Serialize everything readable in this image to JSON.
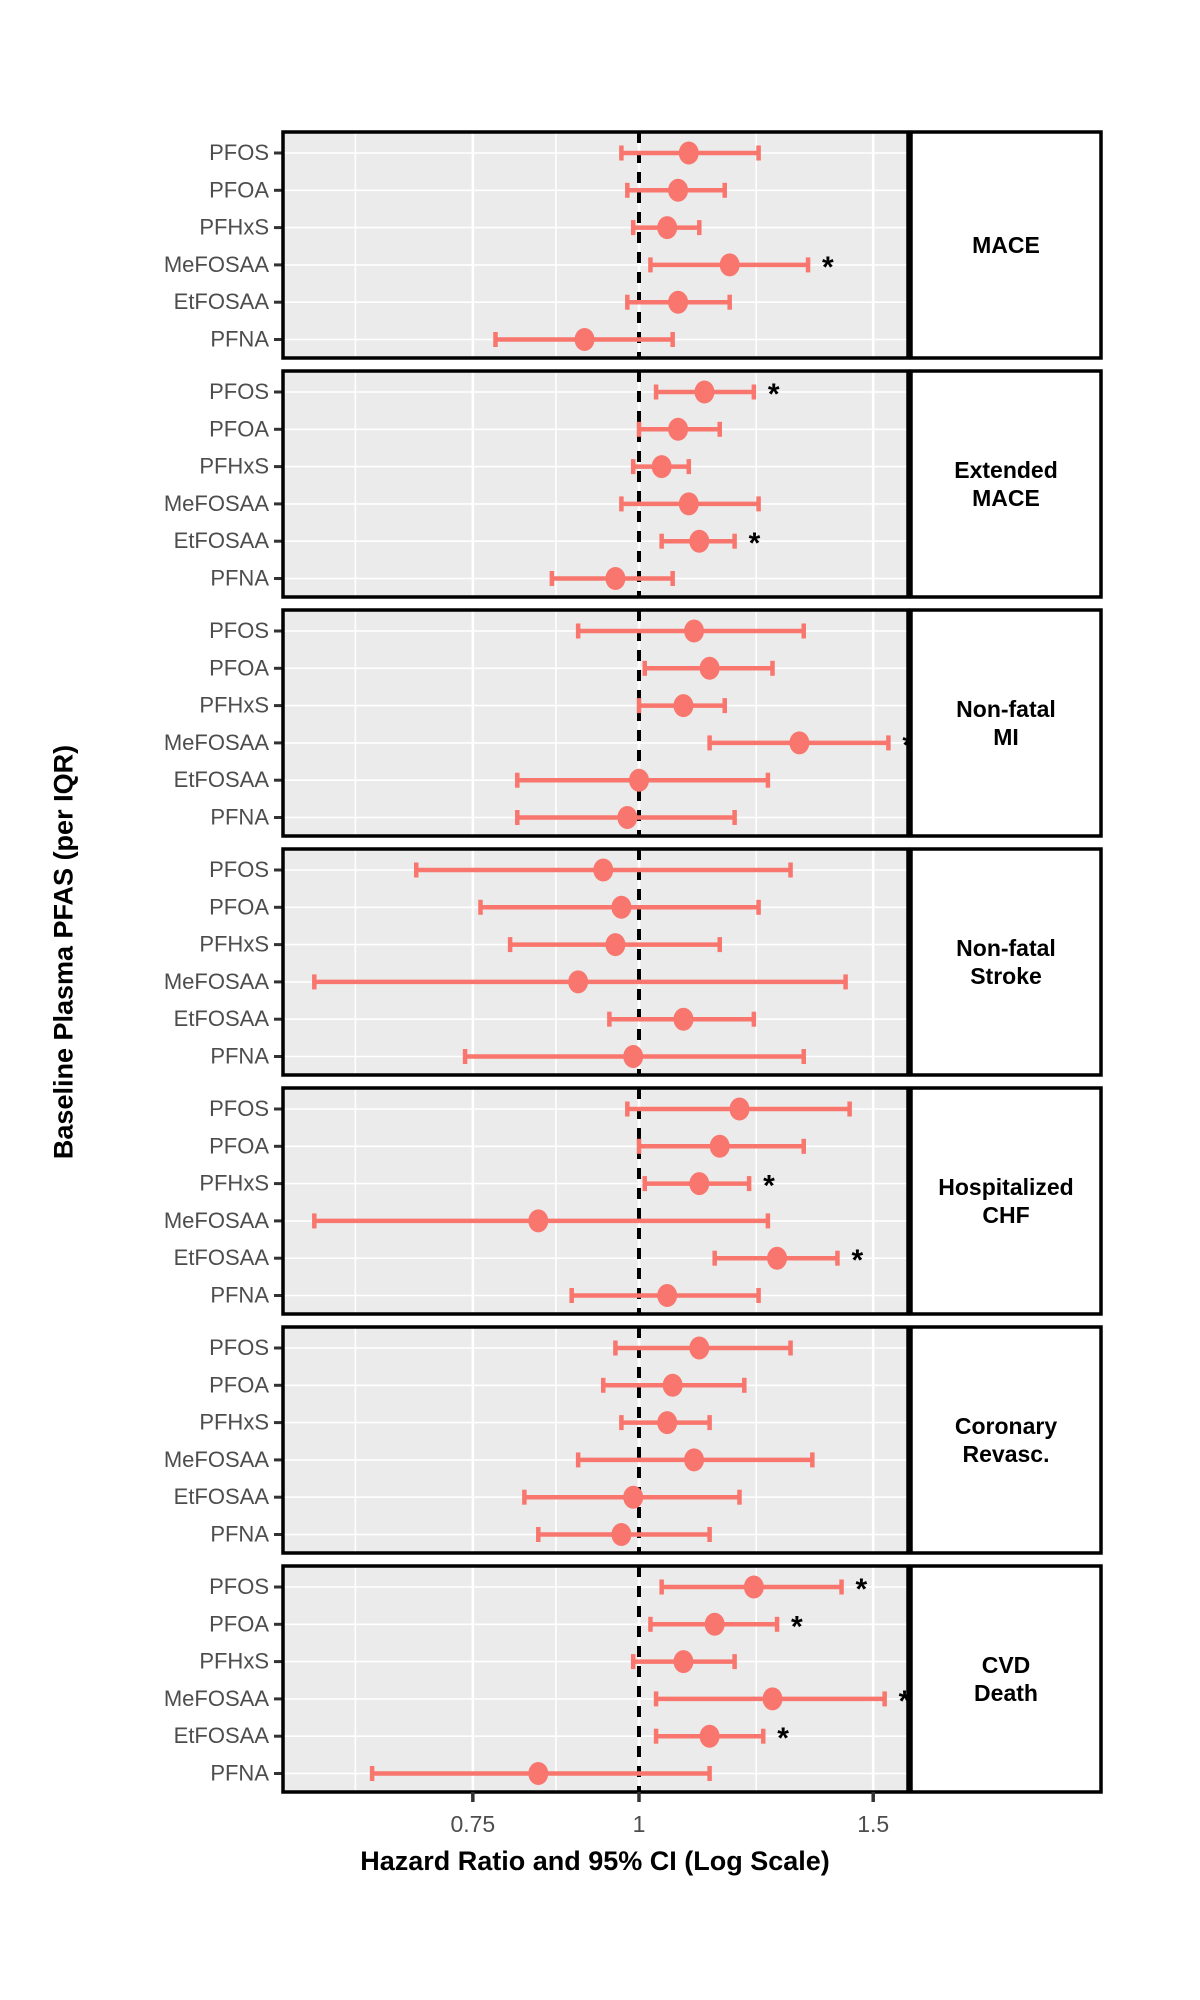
{
  "figure": {
    "x_axis_title": "Hazard Ratio and 95% CI (Log Scale)",
    "y_axis_title": "Baseline Plasma PFAS (per IQR)"
  },
  "chart_data": {
    "type": "forest",
    "x_scale": "log",
    "x_axis": {
      "breaks": [
        0.75,
        1,
        1.5
      ],
      "labels": [
        "0.75",
        "1",
        "1.5"
      ],
      "minor_breaks": [
        0.612,
        0.866,
        1.225
      ],
      "domain": [
        0.54,
        1.59
      ]
    },
    "reference_line": 1.0,
    "significance_marker": "*",
    "categories": [
      "PFOS",
      "PFOA",
      "PFHxS",
      "MeFOSAA",
      "EtFOSAA",
      "PFNA"
    ],
    "colors": {
      "point": "#F8766D",
      "panel_background": "#EBEBEB",
      "gridline": "#FFFFFF",
      "reference_line": "#000000",
      "axis_text": "#4D4D4D",
      "strip_background": "#FFFFFF",
      "border": "#000000"
    },
    "panels": [
      {
        "label": "MACE",
        "label_lines": [
          "MACE"
        ],
        "rows": [
          {
            "compound": "PFOS",
            "hr": 1.09,
            "ci_low": 0.97,
            "ci_high": 1.23,
            "significant": false
          },
          {
            "compound": "PFOA",
            "hr": 1.07,
            "ci_low": 0.98,
            "ci_high": 1.16,
            "significant": false
          },
          {
            "compound": "PFHxS",
            "hr": 1.05,
            "ci_low": 0.99,
            "ci_high": 1.11,
            "significant": false
          },
          {
            "compound": "MeFOSAA",
            "hr": 1.17,
            "ci_low": 1.02,
            "ci_high": 1.34,
            "significant": true
          },
          {
            "compound": "EtFOSAA",
            "hr": 1.07,
            "ci_low": 0.98,
            "ci_high": 1.17,
            "significant": false
          },
          {
            "compound": "PFNA",
            "hr": 0.91,
            "ci_low": 0.78,
            "ci_high": 1.06,
            "significant": false
          }
        ]
      },
      {
        "label": "Extended MACE",
        "label_lines": [
          "Extended",
          "MACE"
        ],
        "rows": [
          {
            "compound": "PFOS",
            "hr": 1.12,
            "ci_low": 1.03,
            "ci_high": 1.22,
            "significant": true
          },
          {
            "compound": "PFOA",
            "hr": 1.07,
            "ci_low": 1.0,
            "ci_high": 1.15,
            "significant": false
          },
          {
            "compound": "PFHxS",
            "hr": 1.04,
            "ci_low": 0.99,
            "ci_high": 1.09,
            "significant": false
          },
          {
            "compound": "MeFOSAA",
            "hr": 1.09,
            "ci_low": 0.97,
            "ci_high": 1.23,
            "significant": false
          },
          {
            "compound": "EtFOSAA",
            "hr": 1.11,
            "ci_low": 1.04,
            "ci_high": 1.18,
            "significant": true
          },
          {
            "compound": "PFNA",
            "hr": 0.96,
            "ci_low": 0.86,
            "ci_high": 1.06,
            "significant": false
          }
        ]
      },
      {
        "label": "Non-fatal MI",
        "label_lines": [
          "Non-fatal",
          "MI"
        ],
        "rows": [
          {
            "compound": "PFOS",
            "hr": 1.1,
            "ci_low": 0.9,
            "ci_high": 1.33,
            "significant": false
          },
          {
            "compound": "PFOA",
            "hr": 1.13,
            "ci_low": 1.01,
            "ci_high": 1.26,
            "significant": false
          },
          {
            "compound": "PFHxS",
            "hr": 1.08,
            "ci_low": 1.0,
            "ci_high": 1.16,
            "significant": false
          },
          {
            "compound": "MeFOSAA",
            "hr": 1.32,
            "ci_low": 1.13,
            "ci_high": 1.54,
            "significant": true
          },
          {
            "compound": "EtFOSAA",
            "hr": 1.0,
            "ci_low": 0.81,
            "ci_high": 1.25,
            "significant": false
          },
          {
            "compound": "PFNA",
            "hr": 0.98,
            "ci_low": 0.81,
            "ci_high": 1.18,
            "significant": false
          }
        ]
      },
      {
        "label": "Non-fatal Stroke",
        "label_lines": [
          "Non-fatal",
          "Stroke"
        ],
        "rows": [
          {
            "compound": "PFOS",
            "hr": 0.94,
            "ci_low": 0.68,
            "ci_high": 1.3,
            "significant": false
          },
          {
            "compound": "PFOA",
            "hr": 0.97,
            "ci_low": 0.76,
            "ci_high": 1.23,
            "significant": false
          },
          {
            "compound": "PFHxS",
            "hr": 0.96,
            "ci_low": 0.8,
            "ci_high": 1.15,
            "significant": false
          },
          {
            "compound": "MeFOSAA",
            "hr": 0.9,
            "ci_low": 0.57,
            "ci_high": 1.43,
            "significant": false
          },
          {
            "compound": "EtFOSAA",
            "hr": 1.08,
            "ci_low": 0.95,
            "ci_high": 1.22,
            "significant": false
          },
          {
            "compound": "PFNA",
            "hr": 0.99,
            "ci_low": 0.74,
            "ci_high": 1.33,
            "significant": false
          }
        ]
      },
      {
        "label": "Hospitalized CHF",
        "label_lines": [
          "Hospitalized",
          "CHF"
        ],
        "rows": [
          {
            "compound": "PFOS",
            "hr": 1.19,
            "ci_low": 0.98,
            "ci_high": 1.44,
            "significant": false
          },
          {
            "compound": "PFOA",
            "hr": 1.15,
            "ci_low": 1.0,
            "ci_high": 1.33,
            "significant": false
          },
          {
            "compound": "PFHxS",
            "hr": 1.11,
            "ci_low": 1.01,
            "ci_high": 1.21,
            "significant": true
          },
          {
            "compound": "MeFOSAA",
            "hr": 0.84,
            "ci_low": 0.57,
            "ci_high": 1.25,
            "significant": false
          },
          {
            "compound": "EtFOSAA",
            "hr": 1.27,
            "ci_low": 1.14,
            "ci_high": 1.41,
            "significant": true
          },
          {
            "compound": "PFNA",
            "hr": 1.05,
            "ci_low": 0.89,
            "ci_high": 1.23,
            "significant": false
          }
        ]
      },
      {
        "label": "Coronary Revasc.",
        "label_lines": [
          "Coronary",
          "Revasc."
        ],
        "rows": [
          {
            "compound": "PFOS",
            "hr": 1.11,
            "ci_low": 0.96,
            "ci_high": 1.3,
            "significant": false
          },
          {
            "compound": "PFOA",
            "hr": 1.06,
            "ci_low": 0.94,
            "ci_high": 1.2,
            "significant": false
          },
          {
            "compound": "PFHxS",
            "hr": 1.05,
            "ci_low": 0.97,
            "ci_high": 1.13,
            "significant": false
          },
          {
            "compound": "MeFOSAA",
            "hr": 1.1,
            "ci_low": 0.9,
            "ci_high": 1.35,
            "significant": false
          },
          {
            "compound": "EtFOSAA",
            "hr": 0.99,
            "ci_low": 0.82,
            "ci_high": 1.19,
            "significant": false
          },
          {
            "compound": "PFNA",
            "hr": 0.97,
            "ci_low": 0.84,
            "ci_high": 1.13,
            "significant": false
          }
        ]
      },
      {
        "label": "CVD Death",
        "label_lines": [
          "CVD",
          "Death"
        ],
        "rows": [
          {
            "compound": "PFOS",
            "hr": 1.22,
            "ci_low": 1.04,
            "ci_high": 1.42,
            "significant": true
          },
          {
            "compound": "PFOA",
            "hr": 1.14,
            "ci_low": 1.02,
            "ci_high": 1.27,
            "significant": true
          },
          {
            "compound": "PFHxS",
            "hr": 1.08,
            "ci_low": 0.99,
            "ci_high": 1.18,
            "significant": false
          },
          {
            "compound": "MeFOSAA",
            "hr": 1.26,
            "ci_low": 1.03,
            "ci_high": 1.53,
            "significant": true
          },
          {
            "compound": "EtFOSAA",
            "hr": 1.13,
            "ci_low": 1.03,
            "ci_high": 1.24,
            "significant": true
          },
          {
            "compound": "PFNA",
            "hr": 0.84,
            "ci_low": 0.63,
            "ci_high": 1.13,
            "significant": false
          }
        ]
      }
    ]
  }
}
